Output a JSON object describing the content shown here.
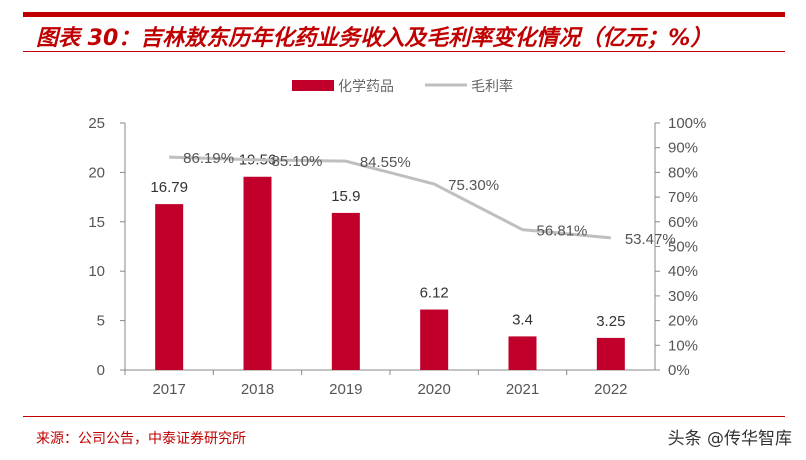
{
  "header": {
    "title": "图表 30：吉林敖东历年化药业务收入及毛利率变化情况（亿元；%）"
  },
  "footer": {
    "source": "来源：公司公告，中泰证券研究所",
    "watermark": "头条 @传华智库"
  },
  "colors": {
    "bar": "#c0002a",
    "line": "#bfbfbf",
    "accent": "#c00000"
  },
  "chart_data": {
    "type": "bar+line",
    "categories": [
      "2017",
      "2018",
      "2019",
      "2020",
      "2021",
      "2022"
    ],
    "series": [
      {
        "name": "化学药品",
        "type": "bar",
        "axis": "left",
        "values": [
          16.79,
          19.56,
          15.9,
          6.12,
          3.4,
          3.25
        ],
        "labels": [
          "16.79",
          "19.56",
          "15.9",
          "6.12",
          "3.4",
          "3.25"
        ]
      },
      {
        "name": "毛利率",
        "type": "line",
        "axis": "right",
        "values": [
          86.19,
          85.1,
          84.55,
          75.3,
          56.81,
          53.47
        ],
        "labels": [
          "86.19%",
          "85.10%",
          "84.55%",
          "75.30%",
          "56.81%",
          "53.47%"
        ]
      }
    ],
    "ylim": [
      0,
      25
    ],
    "yticks": [
      "0",
      "5",
      "10",
      "15",
      "20",
      "25"
    ],
    "y2lim": [
      0,
      100
    ],
    "y2ticks": [
      "0%",
      "10%",
      "20%",
      "30%",
      "40%",
      "50%",
      "60%",
      "70%",
      "80%",
      "90%",
      "100%"
    ],
    "legend": "top-center",
    "grid": false
  }
}
